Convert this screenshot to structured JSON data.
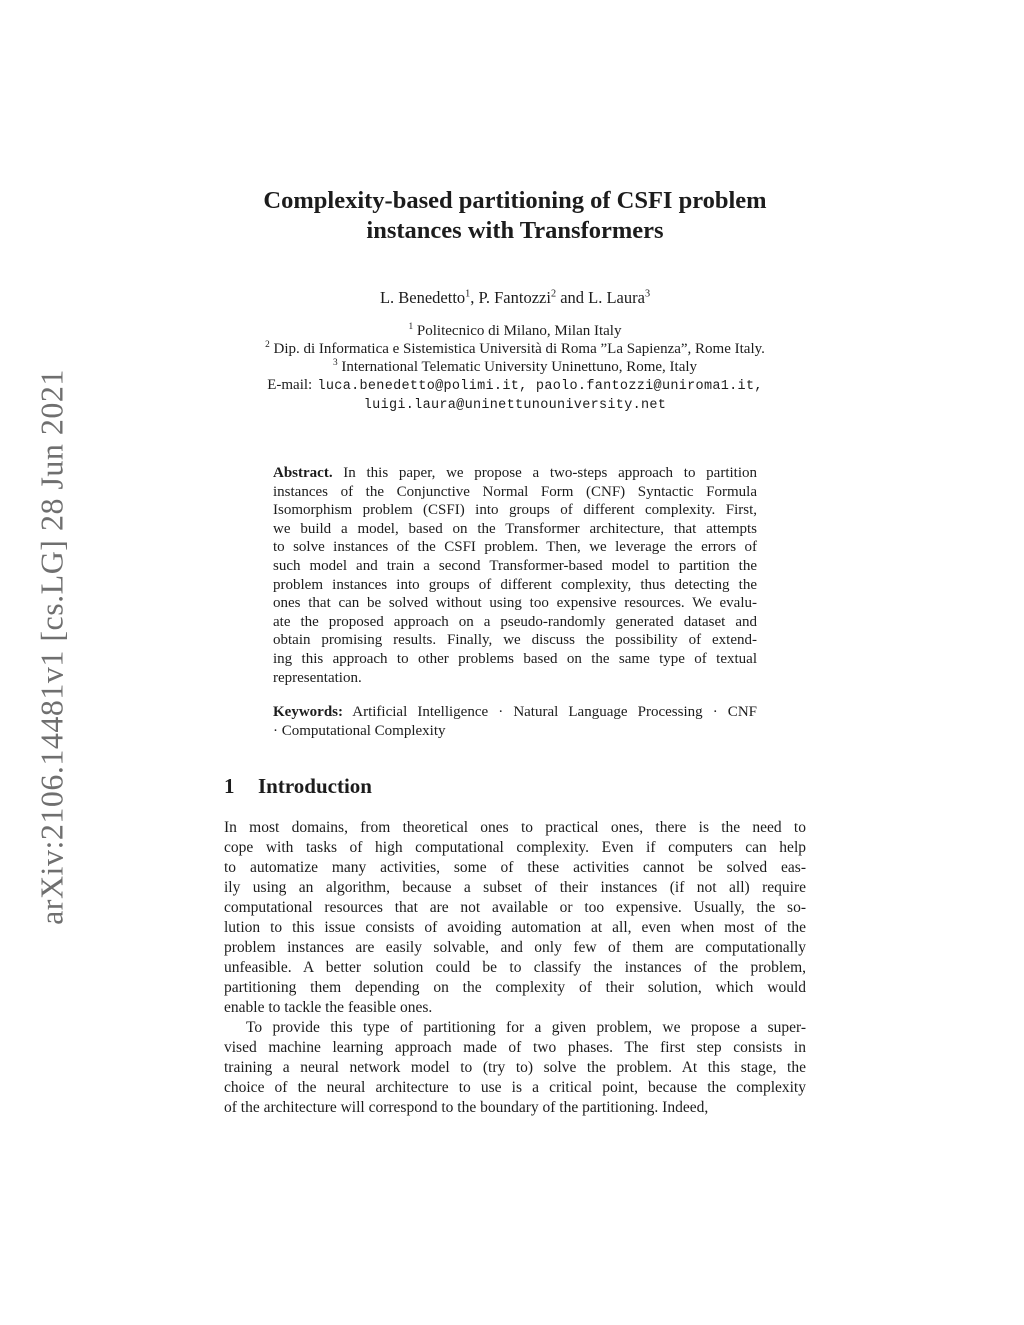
{
  "watermark": {
    "text": "arXiv:2106.14481v1 [cs.LG] 28 Jun 2021"
  },
  "colors": {
    "background": "#ffffff",
    "text": "#1c1c1c",
    "watermark": "#6f6f6f"
  },
  "paper": {
    "title_lines": [
      "Complexity-based partitioning of CSFI problem",
      "instances with Transformers"
    ],
    "authors": {
      "segments": [
        {
          "text": "L. Benedetto",
          "sup": "1"
        },
        {
          "text": ", P. Fantozzi",
          "sup": "2"
        },
        {
          "text": " and L. Laura",
          "sup": "3"
        }
      ]
    },
    "affiliations": [
      {
        "sup": "1",
        "text": "Politecnico di Milano, Milan Italy"
      },
      {
        "sup": "2",
        "text": "Dip. di Informatica e Sistemistica Università di Roma ”La Sapienza”, Rome Italy."
      },
      {
        "sup": "3",
        "text": "International Telematic University Uninettuno, Rome, Italy"
      }
    ],
    "email": {
      "label": "E-mail:",
      "line1": "luca.benedetto@polimi.it, paolo.fantozzi@uniroma1.it,",
      "line2": "luigi.laura@uninettunouniversity.net"
    },
    "abstract": {
      "label": "Abstract.",
      "lines": [
        "In this paper, we propose a two-steps approach to partition",
        "instances of the Conjunctive Normal Form (CNF) Syntactic Formula",
        "Isomorphism problem (CSFI) into groups of different complexity. First,",
        "we build a model, based on the Transformer architecture, that attempts",
        "to solve instances of the CSFI problem. Then, we leverage the errors of",
        "such model and train a second Transformer-based model to partition the",
        "problem instances into groups of different complexity, thus detecting the",
        "ones that can be solved without using too expensive resources. We evalu-",
        "ate the proposed approach on a pseudo-randomly generated dataset and",
        "obtain promising results. Finally, we discuss the possibility of extend-",
        "ing this approach to other problems based on the same type of textual",
        "representation."
      ]
    },
    "keywords": {
      "label": "Keywords:",
      "lines": [
        "Artificial Intelligence · Natural Language Processing · CNF",
        "· Computational Complexity"
      ]
    }
  },
  "intro": {
    "heading": {
      "number": "1",
      "title": "Introduction"
    },
    "paragraphs": [
      {
        "indent": false,
        "lines": [
          "In most domains, from theoretical ones to practical ones, there is the need to",
          "cope with tasks of high computational complexity. Even if computers can help",
          "to automatize many activities, some of these activities cannot be solved eas-",
          "ily using an algorithm, because a subset of their instances (if not all) require",
          "computational resources that are not available or too expensive. Usually, the so-",
          "lution to this issue consists of avoiding automation at all, even when most of the",
          "problem instances are easily solvable, and only few of them are computationally",
          "unfeasible. A better solution could be to classify the instances of the problem,",
          "partitioning them depending on the complexity of their solution, which would",
          "enable to tackle the feasible ones."
        ]
      },
      {
        "indent": true,
        "lines": [
          "To provide this type of partitioning for a given problem, we propose a super-",
          "vised machine learning approach made of two phases. The first step consists in",
          "training a neural network model to (try to) solve the problem. At this stage, the",
          "choice of the neural architecture to use is a critical point, because the complexity",
          "of the architecture will correspond to the boundary of the partitioning. Indeed,"
        ]
      }
    ]
  }
}
